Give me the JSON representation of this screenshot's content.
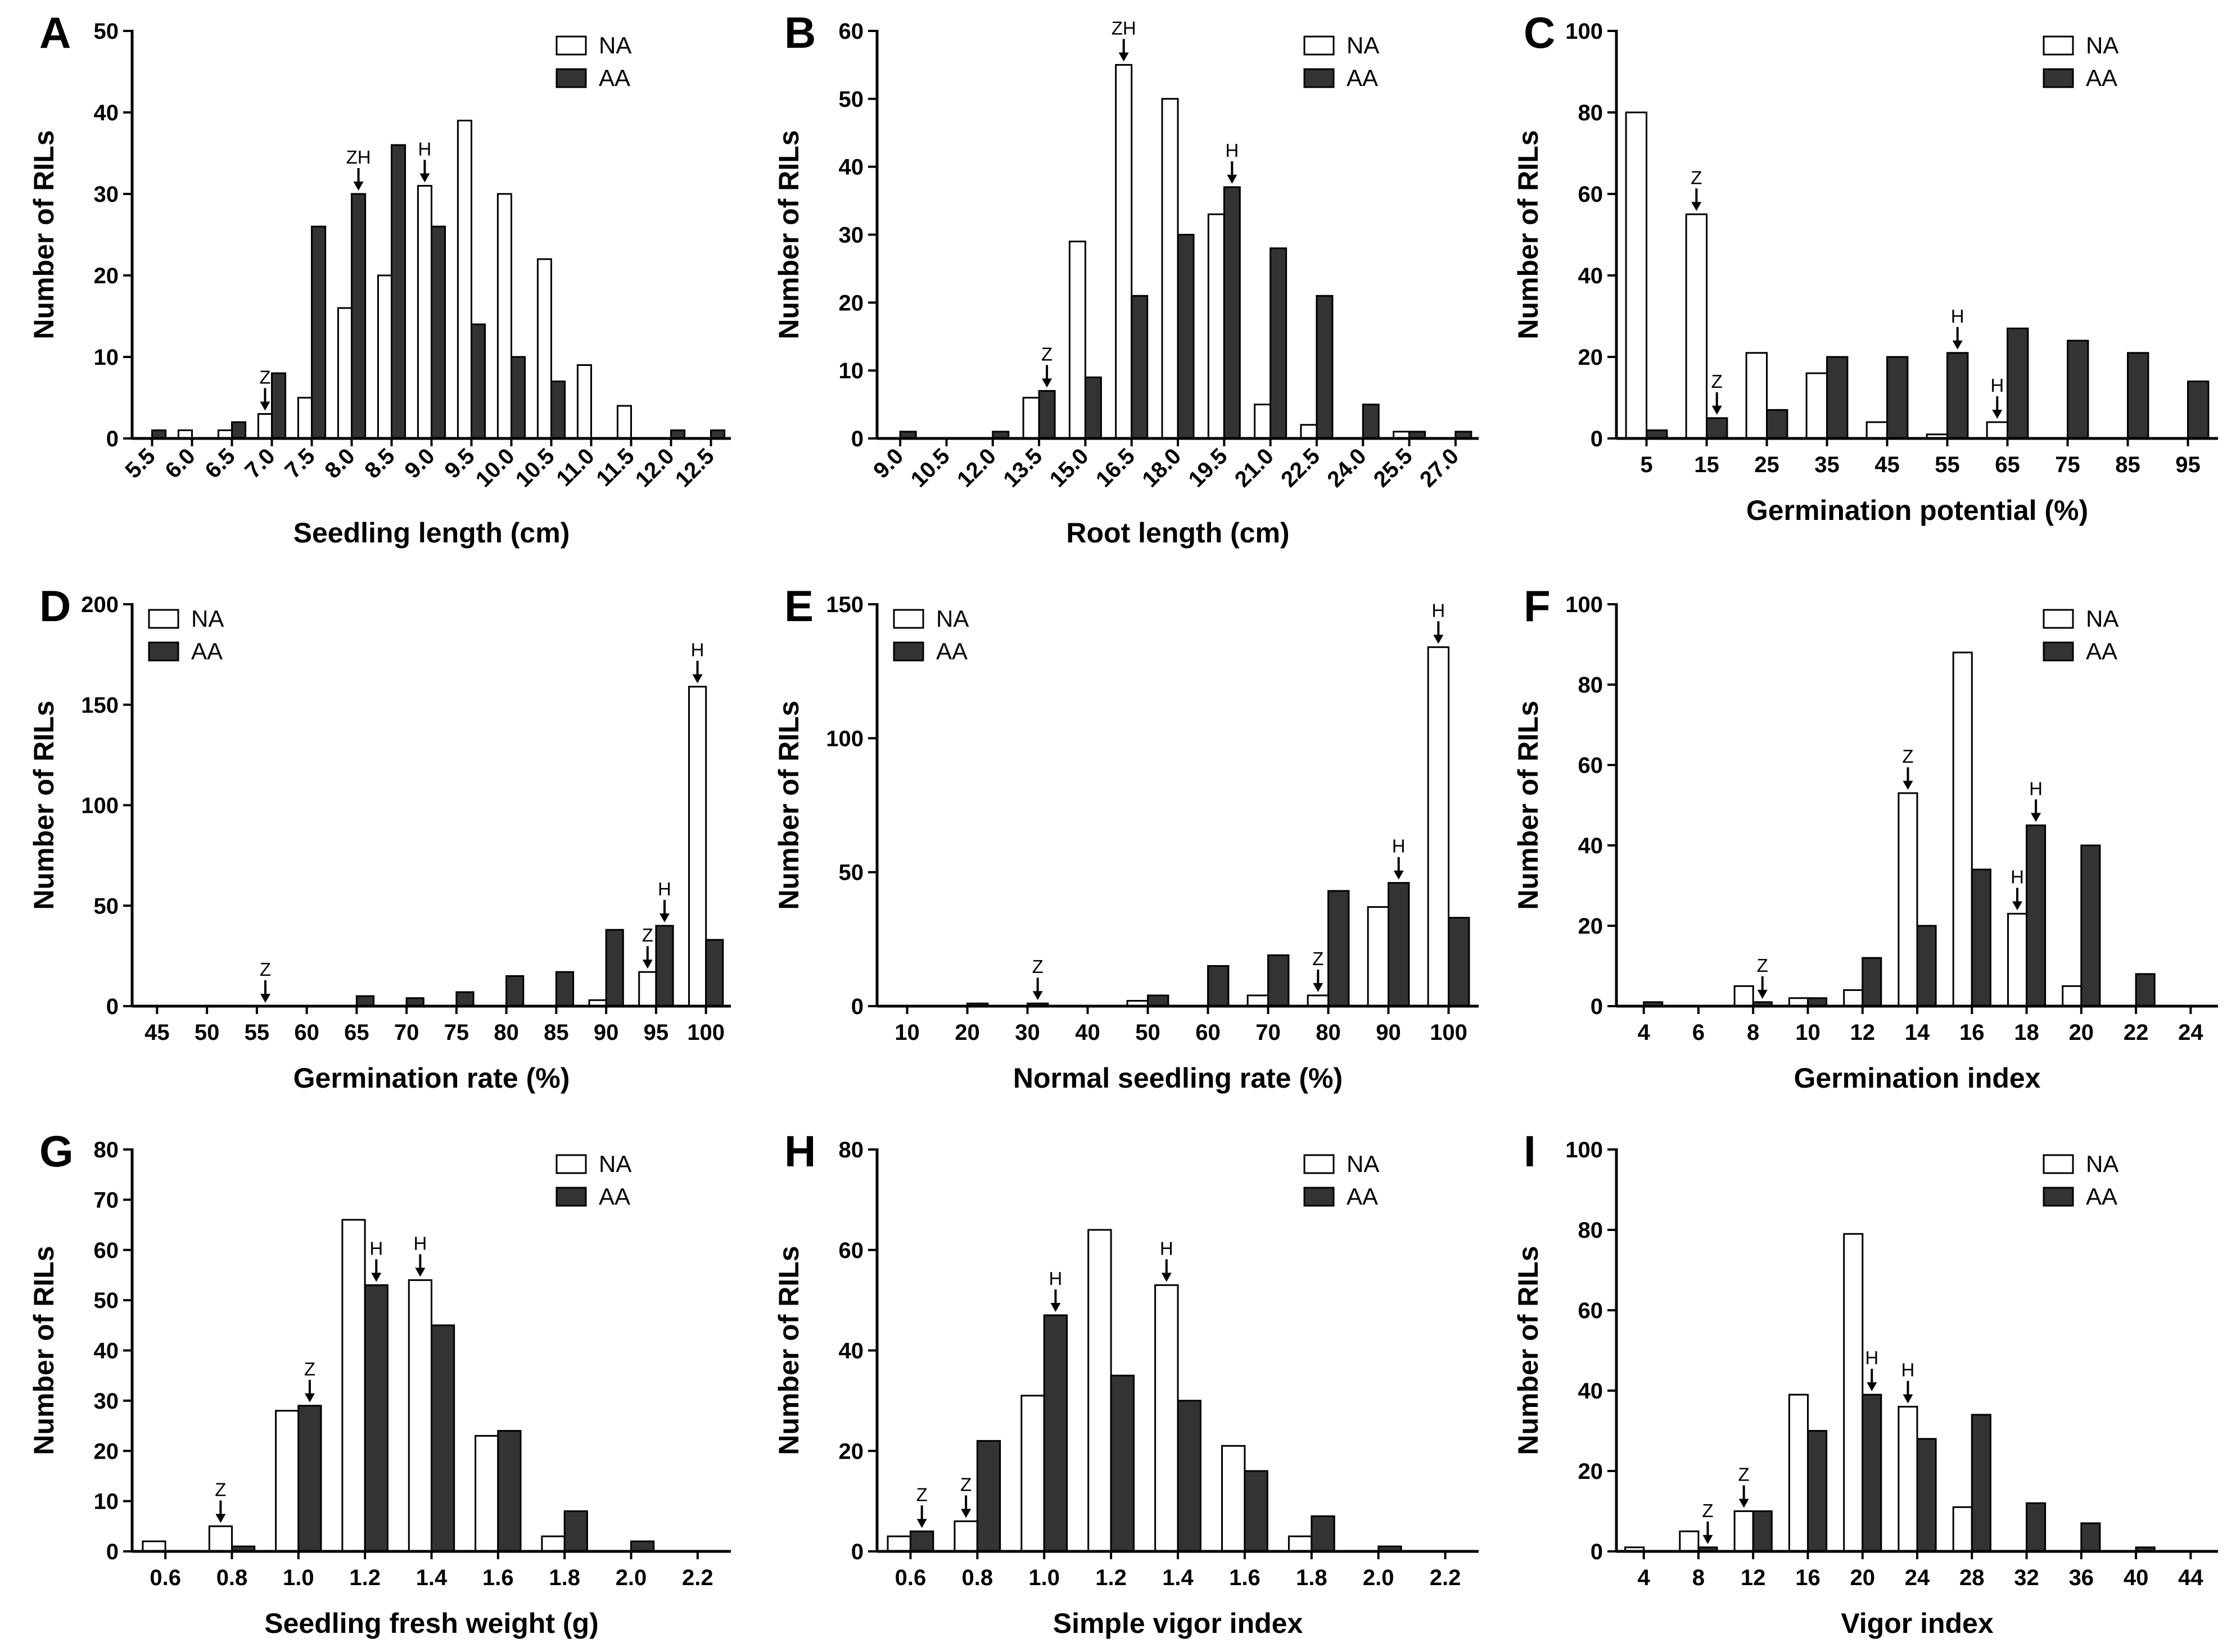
{
  "colors": {
    "NA": "#ffffff",
    "AA": "#333333",
    "outline": "#000000"
  },
  "chart_data": [
    {
      "panel": "A",
      "type": "bar",
      "xlabel": "Seedling length (cm)",
      "ylabel": "Number of RILs",
      "ylim": [
        0,
        50
      ],
      "yticks": [
        0,
        10,
        20,
        30,
        40,
        50
      ],
      "categories": [
        "5.5",
        "6.0",
        "6.5",
        "7.0",
        "7.5",
        "8.0",
        "8.5",
        "9.0",
        "9.5",
        "10.0",
        "10.5",
        "11.0",
        "11.5",
        "12.0",
        "12.5"
      ],
      "tick_rotation": -45,
      "series": [
        {
          "name": "NA",
          "values": [
            0,
            1,
            1,
            3,
            5,
            16,
            20,
            31,
            39,
            30,
            22,
            9,
            4,
            0,
            0
          ]
        },
        {
          "name": "AA",
          "values": [
            1,
            0,
            2,
            8,
            26,
            30,
            36,
            26,
            14,
            10,
            7,
            0,
            0,
            1,
            1
          ]
        }
      ],
      "legend": [
        "NA",
        "AA"
      ],
      "legend_position": "top-right",
      "markers": [
        {
          "label": "Z",
          "category": 3,
          "series": 0
        },
        {
          "label": "ZH",
          "category": 5,
          "series": 1
        },
        {
          "label": "H",
          "category": 7,
          "series": 0
        }
      ]
    },
    {
      "panel": "B",
      "type": "bar",
      "xlabel": "Root length (cm)",
      "ylabel": "Number of RILs",
      "ylim": [
        0,
        60
      ],
      "yticks": [
        0,
        10,
        20,
        30,
        40,
        50,
        60
      ],
      "categories": [
        "9.0",
        "10.5",
        "12.0",
        "13.5",
        "15.0",
        "16.5",
        "18.0",
        "19.5",
        "21.0",
        "22.5",
        "24.0",
        "25.5",
        "27.0"
      ],
      "tick_rotation": -45,
      "series": [
        {
          "name": "NA",
          "values": [
            0,
            0,
            0,
            6,
            29,
            55,
            50,
            33,
            5,
            2,
            0,
            1,
            0
          ]
        },
        {
          "name": "AA",
          "values": [
            1,
            0,
            1,
            7,
            9,
            21,
            30,
            37,
            28,
            21,
            5,
            1,
            1
          ]
        }
      ],
      "legend": [
        "NA",
        "AA"
      ],
      "legend_position": "top-right",
      "markers": [
        {
          "label": "Z",
          "category": 3,
          "series": 1
        },
        {
          "label": "ZH",
          "category": 5,
          "series": 0
        },
        {
          "label": "H",
          "category": 7,
          "series": 1
        }
      ]
    },
    {
      "panel": "C",
      "type": "bar",
      "xlabel": "Germination potential (%)",
      "ylabel": "Number of RILs",
      "ylim": [
        0,
        100
      ],
      "yticks": [
        0,
        20,
        40,
        60,
        80,
        100
      ],
      "categories": [
        "5",
        "15",
        "25",
        "35",
        "45",
        "55",
        "65",
        "75",
        "85",
        "95"
      ],
      "tick_rotation": 0,
      "series": [
        {
          "name": "NA",
          "values": [
            80,
            55,
            21,
            16,
            4,
            1,
            4,
            0,
            0,
            0
          ]
        },
        {
          "name": "AA",
          "values": [
            2,
            5,
            7,
            20,
            20,
            21,
            27,
            24,
            21,
            14
          ]
        }
      ],
      "legend": [
        "NA",
        "AA"
      ],
      "legend_position": "top-right",
      "markers": [
        {
          "label": "Z",
          "category": 1,
          "series": 0
        },
        {
          "label": "Z",
          "category": 1,
          "series": 1
        },
        {
          "label": "H",
          "category": 5,
          "series": 1
        },
        {
          "label": "H",
          "category": 6,
          "series": 0
        }
      ]
    },
    {
      "panel": "D",
      "type": "bar",
      "xlabel": "Germination rate (%)",
      "ylabel": "Number of RILs",
      "ylim": [
        0,
        200
      ],
      "yticks": [
        0,
        50,
        100,
        150,
        200
      ],
      "categories": [
        "45",
        "50",
        "55",
        "60",
        "65",
        "70",
        "75",
        "80",
        "85",
        "90",
        "95",
        "100"
      ],
      "tick_rotation": 0,
      "series": [
        {
          "name": "NA",
          "values": [
            0,
            0,
            0,
            0,
            0,
            0,
            0,
            0,
            0,
            3,
            17,
            159
          ]
        },
        {
          "name": "AA",
          "values": [
            0,
            0,
            0,
            0,
            5,
            4,
            7,
            15,
            17,
            38,
            40,
            33
          ]
        }
      ],
      "legend": [
        "NA",
        "AA"
      ],
      "legend_position": "top-left",
      "markers": [
        {
          "label": "Z",
          "category": 2,
          "series": 1
        },
        {
          "label": "Z",
          "category": 10,
          "series": 0
        },
        {
          "label": "H",
          "category": 10,
          "series": 1
        },
        {
          "label": "H",
          "category": 11,
          "series": 0
        }
      ]
    },
    {
      "panel": "E",
      "type": "bar",
      "xlabel": "Normal seedling rate (%)",
      "ylabel": "Number of RILs",
      "ylim": [
        0,
        150
      ],
      "yticks": [
        0,
        50,
        100,
        150
      ],
      "categories": [
        "10",
        "20",
        "30",
        "40",
        "50",
        "60",
        "70",
        "80",
        "90",
        "100"
      ],
      "tick_rotation": 0,
      "series": [
        {
          "name": "NA",
          "values": [
            0,
            0,
            0,
            0,
            2,
            0,
            4,
            4,
            37,
            134
          ]
        },
        {
          "name": "AA",
          "values": [
            0,
            1,
            1,
            0,
            4,
            15,
            19,
            43,
            46,
            33
          ]
        }
      ],
      "legend": [
        "NA",
        "AA"
      ],
      "legend_position": "top-left",
      "markers": [
        {
          "label": "Z",
          "category": 2,
          "series": 1
        },
        {
          "label": "Z",
          "category": 7,
          "series": 0
        },
        {
          "label": "H",
          "category": 8,
          "series": 1
        },
        {
          "label": "H",
          "category": 9,
          "series": 0
        }
      ]
    },
    {
      "panel": "F",
      "type": "bar",
      "xlabel": "Germination index",
      "ylabel": "Number of RILs",
      "ylim": [
        0,
        100
      ],
      "yticks": [
        0,
        20,
        40,
        60,
        80,
        100
      ],
      "categories": [
        "4",
        "6",
        "8",
        "10",
        "12",
        "14",
        "16",
        "18",
        "20",
        "22",
        "24"
      ],
      "tick_rotation": 0,
      "series": [
        {
          "name": "NA",
          "values": [
            0,
            0,
            5,
            2,
            4,
            53,
            88,
            23,
            5,
            0,
            0
          ]
        },
        {
          "name": "AA",
          "values": [
            1,
            0,
            1,
            2,
            12,
            20,
            34,
            45,
            40,
            8,
            0
          ]
        }
      ],
      "legend": [
        "NA",
        "AA"
      ],
      "legend_position": "top-right",
      "markers": [
        {
          "label": "Z",
          "category": 2,
          "series": 1
        },
        {
          "label": "Z",
          "category": 5,
          "series": 0
        },
        {
          "label": "H",
          "category": 7,
          "series": 0
        },
        {
          "label": "H",
          "category": 7,
          "series": 1
        }
      ]
    },
    {
      "panel": "G",
      "type": "bar",
      "xlabel": "Seedling fresh weight (g)",
      "ylabel": "Number of RILs",
      "ylim": [
        0,
        80
      ],
      "yticks": [
        0,
        10,
        20,
        30,
        40,
        50,
        60,
        70,
        80
      ],
      "categories": [
        "0.6",
        "0.8",
        "1.0",
        "1.2",
        "1.4",
        "1.6",
        "1.8",
        "2.0",
        "2.2"
      ],
      "tick_rotation": 0,
      "series": [
        {
          "name": "NA",
          "values": [
            2,
            5,
            28,
            66,
            54,
            23,
            3,
            0,
            0
          ]
        },
        {
          "name": "AA",
          "values": [
            0,
            1,
            29,
            53,
            45,
            24,
            8,
            2,
            0
          ]
        }
      ],
      "legend": [
        "NA",
        "AA"
      ],
      "legend_position": "top-right",
      "markers": [
        {
          "label": "Z",
          "category": 1,
          "series": 0
        },
        {
          "label": "Z",
          "category": 2,
          "series": 1
        },
        {
          "label": "H",
          "category": 3,
          "series": 1
        },
        {
          "label": "H",
          "category": 4,
          "series": 0
        }
      ]
    },
    {
      "panel": "H",
      "type": "bar",
      "xlabel": "Simple vigor index",
      "ylabel": "Number of RILs",
      "ylim": [
        0,
        80
      ],
      "yticks": [
        0,
        20,
        40,
        60,
        80
      ],
      "categories": [
        "0.6",
        "0.8",
        "1.0",
        "1.2",
        "1.4",
        "1.6",
        "1.8",
        "2.0",
        "2.2"
      ],
      "tick_rotation": 0,
      "series": [
        {
          "name": "NA",
          "values": [
            3,
            6,
            31,
            64,
            53,
            21,
            3,
            0,
            0
          ]
        },
        {
          "name": "AA",
          "values": [
            4,
            22,
            47,
            35,
            30,
            16,
            7,
            1,
            0
          ]
        }
      ],
      "legend": [
        "NA",
        "AA"
      ],
      "legend_position": "top-right",
      "markers": [
        {
          "label": "Z",
          "category": 0,
          "series": 1
        },
        {
          "label": "Z",
          "category": 1,
          "series": 0
        },
        {
          "label": "H",
          "category": 2,
          "series": 1
        },
        {
          "label": "H",
          "category": 4,
          "series": 0
        }
      ]
    },
    {
      "panel": "I",
      "type": "bar",
      "xlabel": "Vigor index",
      "ylabel": "Number of RILs",
      "ylim": [
        0,
        100
      ],
      "yticks": [
        0,
        20,
        40,
        60,
        80,
        100
      ],
      "categories": [
        "4",
        "8",
        "12",
        "16",
        "20",
        "24",
        "28",
        "32",
        "36",
        "40",
        "44"
      ],
      "tick_rotation": 0,
      "series": [
        {
          "name": "NA",
          "values": [
            1,
            5,
            10,
            39,
            79,
            36,
            11,
            0,
            0,
            0,
            0
          ]
        },
        {
          "name": "AA",
          "values": [
            0,
            1,
            10,
            30,
            39,
            28,
            34,
            12,
            7,
            1,
            0
          ]
        }
      ],
      "legend": [
        "NA",
        "AA"
      ],
      "legend_position": "top-right",
      "markers": [
        {
          "label": "Z",
          "category": 1,
          "series": 1
        },
        {
          "label": "Z",
          "category": 2,
          "series": 0
        },
        {
          "label": "H",
          "category": 4,
          "series": 1
        },
        {
          "label": "H",
          "category": 5,
          "series": 0
        }
      ]
    }
  ]
}
